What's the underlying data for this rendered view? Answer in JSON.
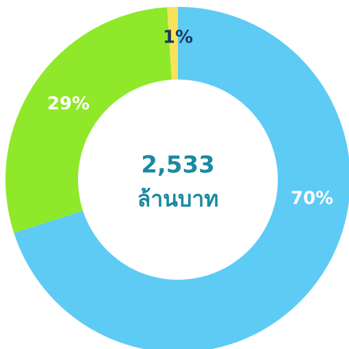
{
  "chart_data": {
    "type": "donut",
    "values": [
      70,
      29,
      1
    ],
    "value_labels": [
      "70%",
      "29%",
      "1%"
    ],
    "colors": [
      "#5ecbf5",
      "#8fe82a",
      "#f7e35a"
    ],
    "label_colors": [
      "#ffffff",
      "#ffffff",
      "#1b3a5c"
    ],
    "center_value": "2,533",
    "center_unit": "ล้านบาท"
  }
}
